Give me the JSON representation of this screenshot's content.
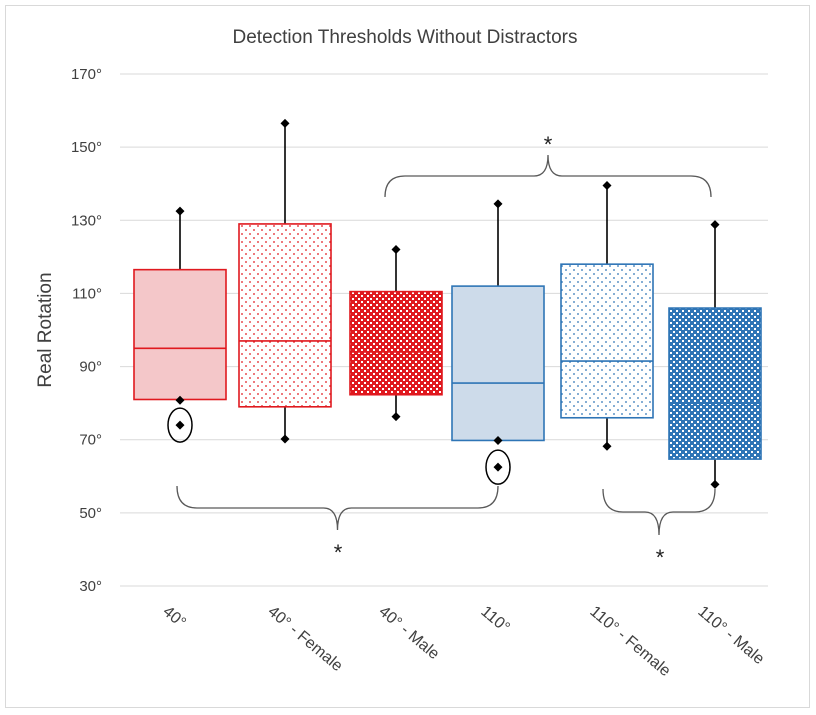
{
  "chart_data": {
    "type": "box",
    "title": "Detection Thresholds Without Distractors",
    "xlabel": "",
    "ylabel": "Real Rotation",
    "ylim": [
      30,
      170
    ],
    "yticks": [
      30,
      50,
      70,
      90,
      110,
      130,
      150,
      170
    ],
    "ytick_labels": [
      "30°",
      "50°",
      "70°",
      "90°",
      "110°",
      "130°",
      "150°",
      "170°"
    ],
    "grid": true,
    "categories": [
      "40°",
      "40° - Female",
      "40° - Male",
      "110°",
      "110° - Female",
      "110° - Male"
    ],
    "boxes": [
      {
        "min": 80.8,
        "q1": 81.0,
        "median": 95.0,
        "q3": 116.5,
        "max": 132.5,
        "outliers": [
          74.0
        ],
        "color": "#e0191f",
        "pattern": "solid"
      },
      {
        "min": 70.2,
        "q1": 79.0,
        "median": 97.0,
        "q3": 129.0,
        "max": 156.5,
        "outliers": [],
        "color": "#e0191f",
        "pattern": "sparse-dots"
      },
      {
        "min": 76.3,
        "q1": 82.3,
        "median": 94.0,
        "q3": 110.5,
        "max": 122.0,
        "outliers": [],
        "color": "#e0191f",
        "pattern": "dense-dots"
      },
      {
        "min": 69.8,
        "q1": 69.8,
        "median": 85.5,
        "q3": 112.0,
        "max": 134.5,
        "outliers": [
          62.5
        ],
        "color": "#2e75b6",
        "pattern": "solid"
      },
      {
        "min": 68.2,
        "q1": 76.0,
        "median": 91.5,
        "q3": 118.0,
        "max": 139.5,
        "outliers": [],
        "color": "#2e75b6",
        "pattern": "sparse-dots"
      },
      {
        "min": 57.8,
        "q1": 64.7,
        "median": 80.0,
        "q3": 106.0,
        "max": 128.8,
        "outliers": [],
        "color": "#2e75b6",
        "pattern": "dense-dots"
      }
    ],
    "annotations": [
      {
        "text": "*",
        "groups": [
          "40°",
          "110°"
        ],
        "brace": "below"
      },
      {
        "text": "*",
        "groups": [
          "40° - Male",
          "110° - Male"
        ],
        "brace": "above"
      },
      {
        "text": "*",
        "groups": [
          "110° - Female",
          "110° - Male"
        ],
        "brace": "below"
      }
    ]
  }
}
